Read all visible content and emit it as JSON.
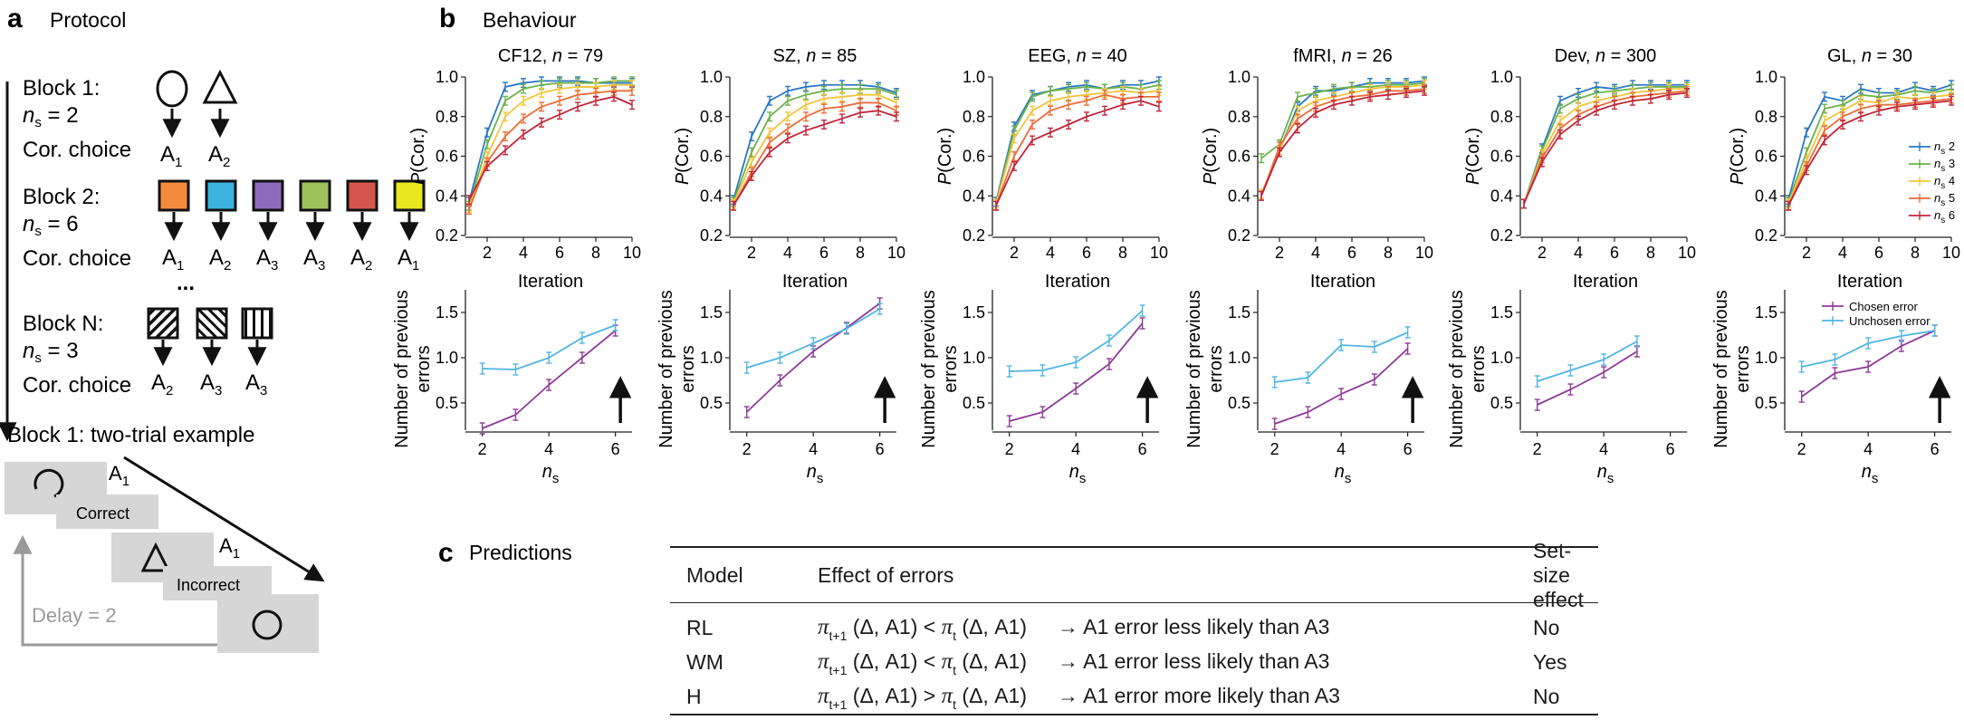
{
  "panel_a": {
    "label": "a",
    "title": "Protocol",
    "blocks": [
      {
        "name": "Block 1:",
        "ns_label": "n",
        "ns_sub": "s",
        "ns_value": "= 2",
        "cor_label": "Cor. choice",
        "actions": [
          "1",
          "2"
        ]
      },
      {
        "name": "Block 2:",
        "ns_label": "n",
        "ns_sub": "s",
        "ns_value": "= 6",
        "cor_label": "Cor. choice",
        "actions": [
          "1",
          "2",
          "3",
          "3",
          "2",
          "1"
        ]
      },
      {
        "name": "Block N:",
        "ns_label": "n",
        "ns_sub": "s",
        "ns_value": "= 3",
        "cor_label": "Cor. choice",
        "actions": [
          "2",
          "3",
          "3"
        ]
      }
    ],
    "action_letter": "A",
    "ellipsis": "...",
    "block2_colors": [
      "#f28c3c",
      "#3cb3dc",
      "#8e6bbd",
      "#9dc25a",
      "#d6564d",
      "#e8e81f"
    ],
    "example": {
      "title": "Block 1: two-trial example",
      "feedback": [
        "Correct",
        "Incorrect"
      ],
      "delay": "Delay = 2",
      "action_labels": [
        "1",
        "1"
      ]
    }
  },
  "panel_b": {
    "label": "b",
    "title": "Behaviour",
    "pcor_ylabel": "P(Cor.)",
    "pcor_xlabel": "Iteration",
    "err_ylabel": [
      "Number of previous",
      "errors"
    ],
    "err_xlabel": "n",
    "err_xlabel_sub": "s",
    "legend_ns": [
      {
        "pre": "n",
        "sub": "s",
        "val": "2"
      },
      {
        "pre": "n",
        "sub": "s",
        "val": "3"
      },
      {
        "pre": "n",
        "sub": "s",
        "val": "4"
      },
      {
        "pre": "n",
        "sub": "s",
        "val": "5"
      },
      {
        "pre": "n",
        "sub": "s",
        "val": "6"
      }
    ],
    "legend_err": [
      "Chosen error",
      "Unchosen error"
    ]
  },
  "chart_data": {
    "type": "line",
    "ns_colors": [
      "#2a78c5",
      "#6cb24a",
      "#f3c43c",
      "#ec6d3a",
      "#c0263a"
    ],
    "err_colors": [
      "#8e3a98",
      "#4fb6e3"
    ],
    "pcor_ylim": [
      0.2,
      1.0
    ],
    "pcor_yticks": [
      "0.2",
      "0.4",
      "0.6",
      "0.8",
      "1.0"
    ],
    "pcor_xticks": [
      2,
      4,
      6,
      8,
      10
    ],
    "err_xticks": [
      2,
      4,
      6
    ],
    "datasets": [
      {
        "name": "CF12",
        "n": "79",
        "pcor": [
          [
            0.37,
            0.72,
            0.95,
            0.97,
            0.98,
            0.98,
            0.98,
            0.97,
            0.97,
            0.97
          ],
          [
            0.35,
            0.66,
            0.88,
            0.94,
            0.96,
            0.97,
            0.97,
            0.97,
            0.98,
            0.98
          ],
          [
            0.34,
            0.6,
            0.8,
            0.88,
            0.92,
            0.94,
            0.95,
            0.95,
            0.96,
            0.96
          ],
          [
            0.33,
            0.57,
            0.7,
            0.79,
            0.85,
            0.88,
            0.91,
            0.92,
            0.93,
            0.93
          ],
          [
            0.38,
            0.55,
            0.63,
            0.71,
            0.77,
            0.81,
            0.85,
            0.88,
            0.9,
            0.86
          ]
        ],
        "err_ylim": [
          0.2,
          1.75
        ],
        "err_yticks": [
          "0.5",
          "1.0",
          "1.5"
        ],
        "err_x": [
          2,
          3,
          4,
          5,
          6
        ],
        "chosen": [
          0.22,
          0.37,
          0.7,
          1.0,
          1.3
        ],
        "unchosen": [
          0.88,
          0.87,
          1.0,
          1.22,
          1.36
        ],
        "arrow": true
      },
      {
        "name": "SZ",
        "n": "85",
        "pcor": [
          [
            0.38,
            0.7,
            0.88,
            0.93,
            0.95,
            0.96,
            0.96,
            0.96,
            0.95,
            0.92
          ],
          [
            0.37,
            0.62,
            0.8,
            0.88,
            0.91,
            0.93,
            0.94,
            0.94,
            0.94,
            0.91
          ],
          [
            0.36,
            0.57,
            0.72,
            0.8,
            0.86,
            0.89,
            0.9,
            0.91,
            0.91,
            0.87
          ],
          [
            0.35,
            0.52,
            0.67,
            0.74,
            0.8,
            0.84,
            0.85,
            0.87,
            0.87,
            0.83
          ],
          [
            0.35,
            0.5,
            0.62,
            0.69,
            0.73,
            0.76,
            0.79,
            0.82,
            0.83,
            0.8
          ]
        ],
        "err_ylim": [
          0.2,
          1.75
        ],
        "err_yticks": [
          "0.5",
          "1.0",
          "1.5"
        ],
        "err_x": [
          2,
          3,
          4,
          5,
          6
        ],
        "chosen": [
          0.4,
          0.75,
          1.07,
          1.33,
          1.6
        ],
        "unchosen": [
          0.89,
          1.0,
          1.16,
          1.32,
          1.54
        ],
        "arrow": true
      },
      {
        "name": "EEG",
        "n": "40",
        "pcor": [
          [
            0.37,
            0.75,
            0.91,
            0.93,
            0.95,
            0.96,
            0.94,
            0.96,
            0.96,
            0.98
          ],
          [
            0.36,
            0.73,
            0.9,
            0.93,
            0.94,
            0.95,
            0.94,
            0.95,
            0.94,
            0.96
          ],
          [
            0.36,
            0.69,
            0.83,
            0.88,
            0.9,
            0.91,
            0.92,
            0.93,
            0.92,
            0.93
          ],
          [
            0.35,
            0.6,
            0.76,
            0.83,
            0.86,
            0.88,
            0.91,
            0.89,
            0.9,
            0.9
          ],
          [
            0.35,
            0.55,
            0.68,
            0.72,
            0.76,
            0.8,
            0.83,
            0.86,
            0.88,
            0.85
          ]
        ],
        "err_ylim": [
          0.2,
          1.75
        ],
        "err_yticks": [
          "0.5",
          "1.0",
          "1.5"
        ],
        "err_x": [
          2,
          3,
          4,
          5,
          6
        ],
        "chosen": [
          0.3,
          0.4,
          0.66,
          0.93,
          1.38
        ],
        "unchosen": [
          0.85,
          0.86,
          0.95,
          1.19,
          1.52
        ],
        "arrow": true
      },
      {
        "name": "fMRI",
        "n": "26",
        "pcor": [
          [
            0.4,
            0.63,
            0.85,
            0.93,
            0.93,
            0.95,
            0.97,
            0.97,
            0.97,
            0.98
          ],
          [
            0.59,
            0.66,
            0.9,
            0.92,
            0.94,
            0.95,
            0.95,
            0.96,
            0.96,
            0.97
          ],
          [
            0.41,
            0.63,
            0.83,
            0.88,
            0.9,
            0.92,
            0.94,
            0.95,
            0.95,
            0.96
          ],
          [
            0.4,
            0.65,
            0.79,
            0.85,
            0.88,
            0.9,
            0.91,
            0.93,
            0.93,
            0.94
          ],
          [
            0.4,
            0.62,
            0.74,
            0.82,
            0.86,
            0.88,
            0.9,
            0.91,
            0.92,
            0.93
          ]
        ],
        "err_ylim": [
          0.2,
          1.75
        ],
        "err_yticks": [
          "0.5",
          "1.0",
          "1.5"
        ],
        "err_x": [
          2,
          3,
          4,
          5,
          6
        ],
        "chosen": [
          0.27,
          0.4,
          0.6,
          0.76,
          1.1
        ],
        "unchosen": [
          0.73,
          0.78,
          1.14,
          1.12,
          1.28
        ],
        "arrow": true
      },
      {
        "name": "Dev",
        "n": "300",
        "pcor": [
          [
            0.36,
            0.64,
            0.88,
            0.92,
            0.95,
            0.94,
            0.96,
            0.96,
            0.96,
            0.96
          ],
          [
            0.36,
            0.63,
            0.84,
            0.89,
            0.92,
            0.93,
            0.94,
            0.95,
            0.95,
            0.95
          ],
          [
            0.36,
            0.61,
            0.78,
            0.85,
            0.88,
            0.9,
            0.92,
            0.93,
            0.94,
            0.94
          ],
          [
            0.36,
            0.59,
            0.74,
            0.81,
            0.85,
            0.88,
            0.9,
            0.91,
            0.92,
            0.93
          ],
          [
            0.36,
            0.57,
            0.71,
            0.78,
            0.83,
            0.86,
            0.88,
            0.89,
            0.91,
            0.92
          ]
        ],
        "err_ylim": [
          0.2,
          1.75
        ],
        "err_yticks": [
          "0.5",
          "1.0",
          "1.5"
        ],
        "err_x": [
          2,
          3,
          4,
          5
        ],
        "chosen": [
          0.48,
          0.65,
          0.84,
          1.07
        ],
        "unchosen": [
          0.74,
          0.86,
          0.98,
          1.18
        ],
        "arrow": false
      },
      {
        "name": "GL",
        "n": "30",
        "pcor": [
          [
            0.38,
            0.72,
            0.9,
            0.88,
            0.94,
            0.92,
            0.92,
            0.95,
            0.93,
            0.96
          ],
          [
            0.37,
            0.62,
            0.84,
            0.86,
            0.91,
            0.9,
            0.91,
            0.93,
            0.92,
            0.94
          ],
          [
            0.36,
            0.58,
            0.78,
            0.83,
            0.88,
            0.87,
            0.9,
            0.89,
            0.9,
            0.91
          ],
          [
            0.35,
            0.55,
            0.73,
            0.8,
            0.84,
            0.86,
            0.86,
            0.87,
            0.88,
            0.89
          ],
          [
            0.35,
            0.53,
            0.68,
            0.76,
            0.8,
            0.83,
            0.85,
            0.86,
            0.87,
            0.88
          ]
        ],
        "err_ylim": [
          0.2,
          1.75
        ],
        "err_yticks": [
          "0.5",
          "1.0",
          "1.5"
        ],
        "err_x": [
          2,
          3,
          4,
          5,
          6
        ],
        "chosen": [
          0.57,
          0.83,
          0.9,
          1.13,
          1.3
        ],
        "unchosen": [
          0.9,
          0.98,
          1.16,
          1.24,
          1.3
        ],
        "arrow": true
      }
    ]
  },
  "panel_c": {
    "label": "c",
    "title": "Predictions",
    "headers": [
      "Model",
      "Effect of errors",
      "Set-size effect"
    ],
    "rows": [
      {
        "model": "RL",
        "lhs_sub": "t+1",
        "op": "<",
        "rhs_sub": "t",
        "args": "(Δ, A1)",
        "effect": "→ A1 error less likely than A3",
        "setsize": "No"
      },
      {
        "model": "WM",
        "lhs_sub": "t+1",
        "op": "<",
        "rhs_sub": "t",
        "args": "(Δ, A1)",
        "effect": "→ A1 error less likely than A3",
        "setsize": "Yes"
      },
      {
        "model": "H",
        "lhs_sub": "t+1",
        "op": ">",
        "rhs_sub": "t",
        "args": "(Δ, A1)",
        "effect": "→ A1 error more likely than A3",
        "setsize": "No"
      }
    ],
    "pi_symbol": "π"
  }
}
